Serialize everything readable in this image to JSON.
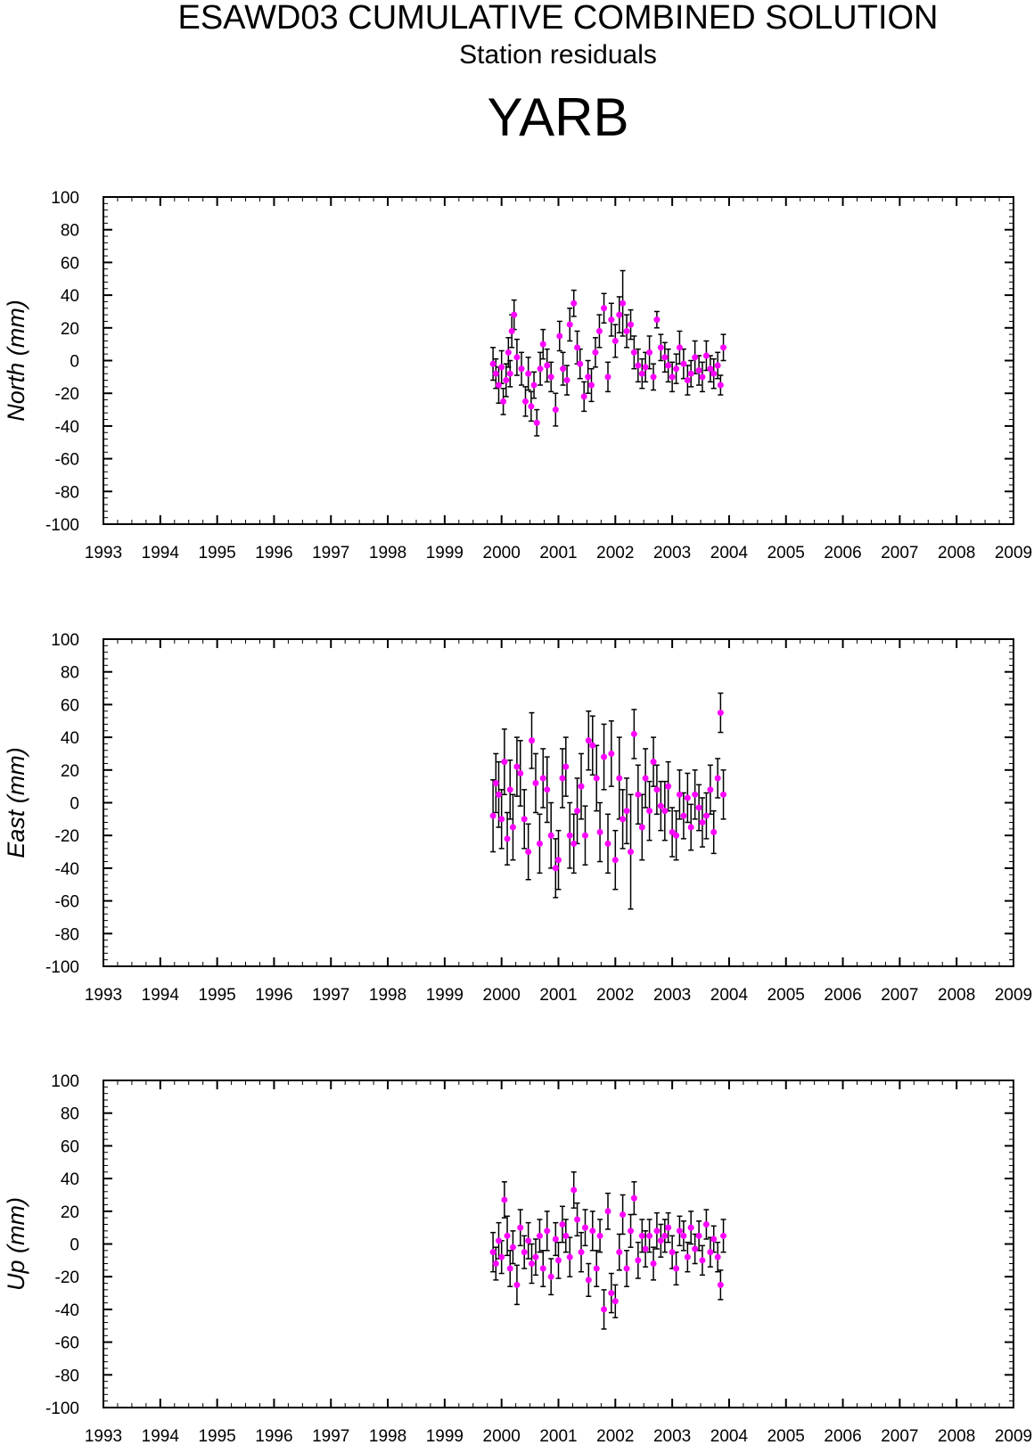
{
  "title": "ESAWD03 CUMULATIVE COMBINED SOLUTION",
  "subtitle": "Station residuals",
  "station": "YARB",
  "colors": {
    "point": "#ff00ff",
    "error_bar": "#000000",
    "axis": "#000000",
    "background": "#ffffff"
  },
  "chart_data": [
    {
      "type": "scatter",
      "ylabel": "North (mm)",
      "xlim": [
        1993,
        2009
      ],
      "ylim": [
        -100,
        100
      ],
      "x_ticks": [
        "1993",
        "1994",
        "1995",
        "1996",
        "1997",
        "1998",
        "1999",
        "2000",
        "2001",
        "2002",
        "2003",
        "2004",
        "2005",
        "2006",
        "2007",
        "2008",
        "2009"
      ],
      "y_ticks": [
        "-100",
        "-80",
        "-60",
        "-40",
        "-20",
        "0",
        "20",
        "40",
        "60",
        "80",
        "100"
      ],
      "error_bars": true,
      "grid": false,
      "series": [
        {
          "x": [
            1999.85,
            1999.9,
            1999.95,
            2000.0,
            2000.03,
            2000.08,
            2000.12,
            2000.15,
            2000.18,
            2000.22,
            2000.27,
            2000.35,
            2000.42,
            2000.47,
            2000.52,
            2000.57,
            2000.62,
            2000.68,
            2000.73,
            2000.8,
            2000.87,
            2000.95,
            2001.02,
            2001.08,
            2001.15,
            2001.2,
            2001.27,
            2001.33,
            2001.38,
            2001.45,
            2001.52,
            2001.58,
            2001.65,
            2001.72,
            2001.8,
            2001.87,
            2001.93,
            2002.0,
            2002.07,
            2002.13,
            2002.2,
            2002.27,
            2002.33,
            2002.4,
            2002.47,
            2002.53,
            2002.6,
            2002.67,
            2002.73,
            2002.8,
            2002.87,
            2002.93,
            2003.0,
            2003.07,
            2003.13,
            2003.2,
            2003.27,
            2003.33,
            2003.4,
            2003.47,
            2003.53,
            2003.6,
            2003.67,
            2003.73,
            2003.8,
            2003.85,
            2003.9
          ],
          "y": [
            -2,
            -8,
            -15,
            -4,
            -25,
            -12,
            5,
            -8,
            18,
            28,
            2,
            -5,
            -25,
            -8,
            -28,
            -15,
            -38,
            -5,
            10,
            -3,
            -10,
            -30,
            15,
            -5,
            -12,
            22,
            35,
            8,
            -2,
            -22,
            -10,
            -15,
            5,
            18,
            32,
            -10,
            25,
            12,
            28,
            35,
            18,
            22,
            5,
            -3,
            -8,
            -4,
            5,
            -10,
            25,
            8,
            2,
            -3,
            -10,
            -5,
            8,
            -2,
            -12,
            -8,
            2,
            -6,
            -10,
            3,
            -5,
            -8,
            -3,
            -15,
            8
          ],
          "err": [
            10,
            9,
            11,
            10,
            8,
            10,
            9,
            8,
            10,
            9,
            11,
            10,
            9,
            10,
            9,
            8,
            8,
            10,
            9,
            10,
            9,
            10,
            9,
            10,
            9,
            10,
            8,
            10,
            9,
            9,
            10,
            10,
            9,
            10,
            9,
            9,
            10,
            10,
            11,
            20,
            10,
            9,
            10,
            10,
            9,
            9,
            10,
            8,
            5,
            8,
            9,
            10,
            9,
            9,
            10,
            9,
            9,
            8,
            10,
            9,
            9,
            9,
            8,
            9,
            8,
            6,
            8
          ]
        }
      ]
    },
    {
      "type": "scatter",
      "ylabel": "East (mm)",
      "xlim": [
        1993,
        2009
      ],
      "ylim": [
        -100,
        100
      ],
      "x_ticks": [
        "1993",
        "1994",
        "1995",
        "1996",
        "1997",
        "1998",
        "1999",
        "2000",
        "2001",
        "2002",
        "2003",
        "2004",
        "2005",
        "2006",
        "2007",
        "2008",
        "2009"
      ],
      "y_ticks": [
        "-100",
        "-80",
        "-60",
        "-40",
        "-20",
        "0",
        "20",
        "40",
        "60",
        "80",
        "100"
      ],
      "error_bars": true,
      "grid": false,
      "series": [
        {
          "x": [
            1999.85,
            1999.9,
            1999.95,
            2000.0,
            2000.05,
            2000.1,
            2000.15,
            2000.2,
            2000.27,
            2000.33,
            2000.4,
            2000.47,
            2000.53,
            2000.6,
            2000.67,
            2000.73,
            2000.8,
            2000.87,
            2000.95,
            2001.0,
            2001.07,
            2001.13,
            2001.2,
            2001.27,
            2001.33,
            2001.4,
            2001.47,
            2001.53,
            2001.6,
            2001.67,
            2001.73,
            2001.8,
            2001.87,
            2001.93,
            2002.0,
            2002.07,
            2002.13,
            2002.2,
            2002.27,
            2002.33,
            2002.4,
            2002.47,
            2002.53,
            2002.6,
            2002.67,
            2002.73,
            2002.8,
            2002.87,
            2002.93,
            2003.0,
            2003.07,
            2003.13,
            2003.2,
            2003.27,
            2003.33,
            2003.4,
            2003.47,
            2003.53,
            2003.6,
            2003.67,
            2003.73,
            2003.8,
            2003.85,
            2003.9
          ],
          "y": [
            -8,
            12,
            5,
            -10,
            25,
            -22,
            8,
            -15,
            22,
            18,
            -10,
            -30,
            38,
            12,
            -25,
            15,
            8,
            -20,
            -40,
            -35,
            15,
            22,
            -20,
            -25,
            -5,
            10,
            -20,
            38,
            35,
            15,
            -18,
            28,
            -25,
            30,
            -35,
            15,
            -10,
            -5,
            -30,
            42,
            5,
            -15,
            15,
            -5,
            25,
            8,
            -2,
            -5,
            10,
            -18,
            -20,
            5,
            -8,
            3,
            -15,
            5,
            -3,
            -12,
            -8,
            8,
            -18,
            15,
            55,
            5
          ],
          "err": [
            22,
            18,
            20,
            18,
            20,
            16,
            18,
            20,
            18,
            20,
            18,
            17,
            17,
            18,
            18,
            18,
            20,
            20,
            18,
            18,
            18,
            18,
            20,
            18,
            20,
            20,
            18,
            18,
            18,
            20,
            18,
            20,
            18,
            20,
            18,
            25,
            18,
            20,
            35,
            15,
            18,
            20,
            18,
            18,
            15,
            15,
            15,
            18,
            15,
            15,
            15,
            15,
            14,
            15,
            14,
            15,
            14,
            15,
            14,
            15,
            13,
            12,
            12,
            15
          ]
        }
      ]
    },
    {
      "type": "scatter",
      "ylabel": "Up (mm)",
      "xlim": [
        1993,
        2009
      ],
      "ylim": [
        -100,
        100
      ],
      "x_ticks": [
        "1993",
        "1994",
        "1995",
        "1996",
        "1997",
        "1998",
        "1999",
        "2000",
        "2001",
        "2002",
        "2003",
        "2004",
        "2005",
        "2006",
        "2007",
        "2008",
        "2009"
      ],
      "y_ticks": [
        "-100",
        "-80",
        "-60",
        "-40",
        "-20",
        "0",
        "20",
        "40",
        "60",
        "80",
        "100"
      ],
      "error_bars": true,
      "grid": false,
      "series": [
        {
          "x": [
            1999.85,
            1999.9,
            1999.95,
            2000.0,
            2000.05,
            2000.1,
            2000.15,
            2000.2,
            2000.27,
            2000.33,
            2000.4,
            2000.47,
            2000.53,
            2000.6,
            2000.67,
            2000.73,
            2000.8,
            2000.87,
            2000.95,
            2001.0,
            2001.07,
            2001.13,
            2001.2,
            2001.27,
            2001.33,
            2001.4,
            2001.47,
            2001.53,
            2001.6,
            2001.67,
            2001.73,
            2001.8,
            2001.87,
            2001.93,
            2002.0,
            2002.07,
            2002.13,
            2002.2,
            2002.27,
            2002.33,
            2002.4,
            2002.47,
            2002.53,
            2002.6,
            2002.67,
            2002.73,
            2002.8,
            2002.87,
            2002.93,
            2003.0,
            2003.07,
            2003.13,
            2003.2,
            2003.27,
            2003.33,
            2003.4,
            2003.47,
            2003.53,
            2003.6,
            2003.67,
            2003.73,
            2003.8,
            2003.85,
            2003.9
          ],
          "y": [
            -5,
            -12,
            2,
            -8,
            27,
            5,
            -15,
            -2,
            -25,
            10,
            -5,
            2,
            -12,
            -8,
            5,
            -15,
            8,
            -20,
            3,
            -10,
            12,
            5,
            -8,
            33,
            15,
            -5,
            10,
            -22,
            8,
            -15,
            5,
            -40,
            20,
            -30,
            -35,
            -5,
            18,
            -15,
            8,
            28,
            -10,
            5,
            -3,
            5,
            -12,
            8,
            2,
            5,
            10,
            -5,
            -15,
            8,
            5,
            -8,
            10,
            -3,
            5,
            -10,
            12,
            -5,
            3,
            -8,
            -25,
            5
          ],
          "err": [
            12,
            10,
            11,
            10,
            11,
            12,
            11,
            10,
            12,
            11,
            10,
            11,
            12,
            11,
            10,
            11,
            12,
            11,
            10,
            11,
            11,
            10,
            12,
            11,
            10,
            12,
            11,
            10,
            12,
            11,
            10,
            12,
            11,
            12,
            10,
            11,
            12,
            11,
            10,
            10,
            11,
            10,
            11,
            10,
            10,
            11,
            10,
            10,
            9,
            10,
            10,
            9,
            9,
            9,
            10,
            9,
            9,
            9,
            9,
            9,
            8,
            9,
            9,
            10
          ]
        }
      ]
    }
  ]
}
